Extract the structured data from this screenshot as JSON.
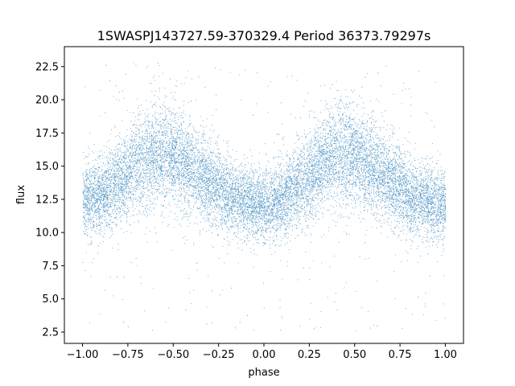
{
  "chart_data": {
    "type": "scatter",
    "title": "1SWASPJ143727.59-370329.4 Period 36373.79297s",
    "xlabel": "phase",
    "ylabel": "flux",
    "xlim": [
      -1.1,
      1.1
    ],
    "ylim": [
      1.65,
      24.0
    ],
    "x_ticks": [
      -1.0,
      -0.75,
      -0.5,
      -0.25,
      0.0,
      0.25,
      0.5,
      0.75,
      1.0
    ],
    "x_tick_labels": [
      "−1.00",
      "−0.75",
      "−0.50",
      "−0.25",
      "0.00",
      "0.25",
      "0.50",
      "0.75",
      "1.00"
    ],
    "y_ticks": [
      2.5,
      5.0,
      7.5,
      10.0,
      12.5,
      15.0,
      17.5,
      20.0,
      22.5
    ],
    "y_tick_labels": [
      "2.5",
      "5.0",
      "7.5",
      "10.0",
      "12.5",
      "15.0",
      "17.5",
      "20.0",
      "22.5"
    ],
    "grid": false,
    "legend": "none",
    "marker_color": "#1f77b4",
    "series": [
      {
        "x_range": [
          -1.0,
          1.0
        ],
        "baseline_flux": 12.0,
        "scatter_sigma": 1.3,
        "humps": [
          {
            "phase_center": -0.58,
            "peak_flux": 16.2
          },
          {
            "phase_center": 0.42,
            "peak_flux": 16.2
          }
        ],
        "median_curve": [
          {
            "x": -1.0,
            "y": 12.4
          },
          {
            "x": -0.9,
            "y": 12.8
          },
          {
            "x": -0.8,
            "y": 13.8
          },
          {
            "x": -0.7,
            "y": 15.2
          },
          {
            "x": -0.6,
            "y": 16.0
          },
          {
            "x": -0.5,
            "y": 15.8
          },
          {
            "x": -0.4,
            "y": 14.8
          },
          {
            "x": -0.3,
            "y": 13.8
          },
          {
            "x": -0.2,
            "y": 12.9
          },
          {
            "x": -0.1,
            "y": 12.3
          },
          {
            "x": 0.0,
            "y": 12.0
          },
          {
            "x": 0.1,
            "y": 12.4
          },
          {
            "x": 0.2,
            "y": 13.6
          },
          {
            "x": 0.3,
            "y": 15.0
          },
          {
            "x": 0.4,
            "y": 16.0
          },
          {
            "x": 0.5,
            "y": 15.8
          },
          {
            "x": 0.6,
            "y": 14.8
          },
          {
            "x": 0.7,
            "y": 13.8
          },
          {
            "x": 0.8,
            "y": 12.9
          },
          {
            "x": 0.9,
            "y": 12.4
          },
          {
            "x": 1.0,
            "y": 12.0
          }
        ]
      }
    ]
  }
}
